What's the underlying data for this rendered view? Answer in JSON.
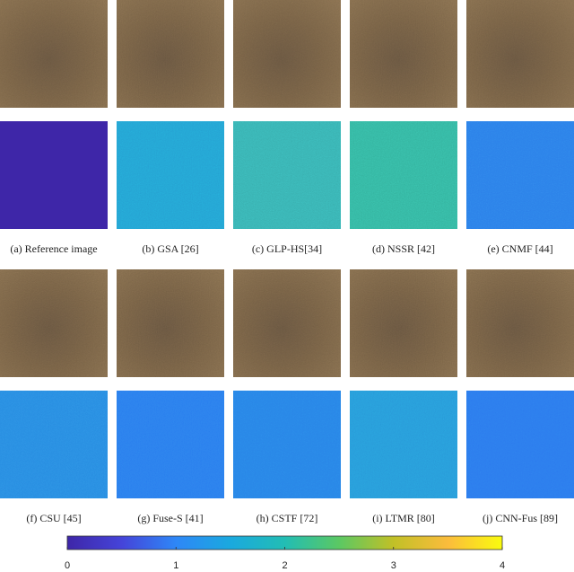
{
  "panels": [
    {
      "caption": "(a) Reference image"
    },
    {
      "caption": "(b) GSA [26]"
    },
    {
      "caption": "(c) GLP-HS[34]"
    },
    {
      "caption": "(d) NSSR [42]"
    },
    {
      "caption": "(e) CNMF [44]"
    },
    {
      "caption": "(f) CSU [45]"
    },
    {
      "caption": "(g) Fuse-S [41]"
    },
    {
      "caption": "(h) CSTF [72]"
    },
    {
      "caption": "(i) LTMR [80]"
    },
    {
      "caption": "(j) CNN-Fus [89]"
    }
  ],
  "colorbar": {
    "lim": [
      0,
      4
    ],
    "ticks": [
      0,
      1,
      2,
      3,
      4
    ]
  }
}
